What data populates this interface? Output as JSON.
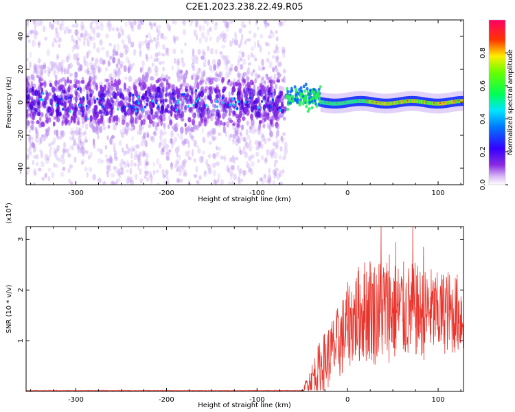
{
  "title": "C2E1.2023.238.22.49.R05",
  "colors": {
    "snr_line": "#e8332b",
    "spectrum_core": "#5500dd",
    "spectrum_halo": "#b98cf0"
  },
  "chart_data": [
    {
      "type": "heatmap",
      "ylabel": "Frequency (Hz)",
      "xlabel": "Height of straight line (km)",
      "xlim": [
        -355,
        128
      ],
      "ylim": [
        -50,
        50
      ],
      "x_ticks": [
        -300,
        -200,
        -100,
        0,
        100
      ],
      "y_ticks": [
        -40,
        -20,
        0,
        20,
        40
      ],
      "colorbar": {
        "label": "Normalized spectral amplitude",
        "range": [
          0,
          1
        ],
        "ticks": [
          "0.0",
          "0.2",
          "0.4",
          "0.6",
          "0.8"
        ],
        "colormap": "rainbow (white-purple-blue-cyan-green-yellow-red-magenta)"
      },
      "features": {
        "noisy_region_x": [
          -355,
          -68
        ],
        "transition_x": [
          -68,
          -30
        ],
        "coherent_band_x": [
          -30,
          128
        ],
        "band_center_hz": 0,
        "band_halfwidth_hz": 3
      }
    },
    {
      "type": "line",
      "ylabel": "SNR (10 * v/v)",
      "xlabel": "Height of straight line (km)",
      "ylabel_scale": "(x10",
      "ylabel_scale_exp": "4",
      "ylabel_scale_close": ")",
      "xlim": [
        -355,
        128
      ],
      "ylim": [
        0,
        3.25
      ],
      "x_ticks": [
        -300,
        -200,
        -100,
        0,
        100
      ],
      "y_ticks": [
        1,
        2,
        3
      ],
      "series": [
        {
          "x": [
            -355,
            -50,
            -45,
            -40,
            -35,
            -30,
            -25,
            -20,
            -15,
            -10,
            -5,
            0,
            5,
            10,
            15,
            20,
            25,
            30,
            35,
            40,
            45,
            50,
            55,
            60,
            65,
            70,
            75,
            80,
            85,
            90,
            95,
            100,
            105,
            110,
            115,
            120,
            125
          ],
          "mean": [
            0.01,
            0.01,
            0.15,
            0.25,
            0.35,
            0.5,
            0.6,
            0.7,
            0.85,
            0.95,
            1.1,
            1.3,
            1.4,
            1.5,
            1.55,
            1.6,
            1.65,
            1.55,
            1.6,
            1.65,
            1.6,
            1.55,
            1.6,
            1.6,
            1.55,
            1.6,
            1.6,
            1.55,
            1.5,
            1.6,
            1.55,
            1.5,
            1.55,
            1.6,
            1.5,
            1.55,
            1.5
          ],
          "spread": [
            0,
            0,
            0.15,
            0.3,
            0.45,
            0.55,
            0.6,
            0.65,
            0.7,
            0.75,
            0.8,
            0.85,
            0.9,
            0.95,
            1.0,
            1.05,
            1.1,
            1.05,
            1.05,
            1.1,
            1.05,
            1.0,
            1.0,
            1.0,
            0.95,
            0.95,
            0.95,
            0.9,
            0.9,
            0.9,
            0.85,
            0.85,
            0.85,
            0.85,
            0.8,
            0.8,
            0.8
          ],
          "peaks": [
            [
              37,
              3.25
            ],
            [
              72,
              3.25
            ],
            [
              53,
              2.95
            ],
            [
              46,
              2.7
            ],
            [
              84,
              2.85
            ]
          ]
        }
      ]
    }
  ]
}
